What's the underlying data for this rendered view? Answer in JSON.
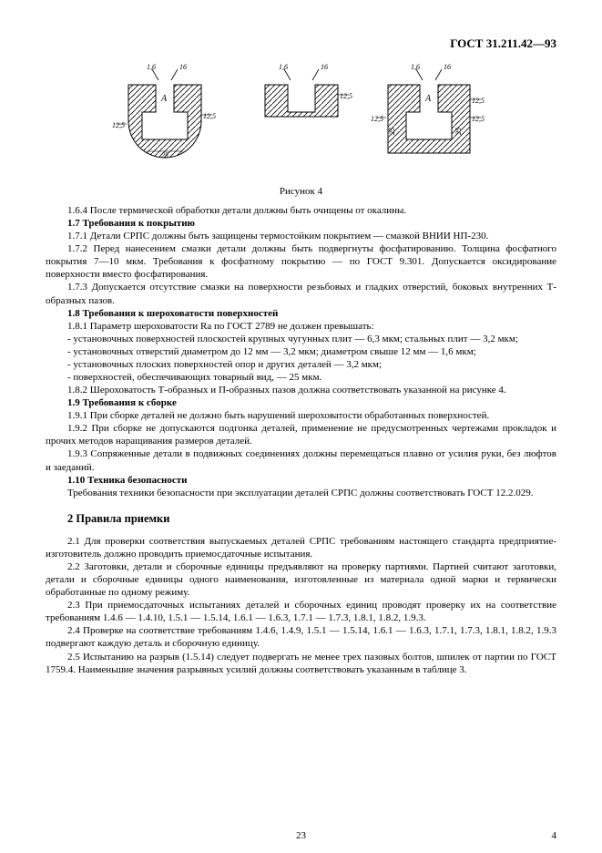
{
  "doc_header": "ГОСТ 31.211.42—93",
  "figure": {
    "caption": "Рисунок 4",
    "stroke": "#000000",
    "hatch": "#000000",
    "dims": {
      "r16": "1,6",
      "v16": "16",
      "v25": "25",
      "s125": "12,5",
      "letterA": "А"
    }
  },
  "paras": [
    {
      "b": false,
      "t": "1.6.4 После термической обработки детали должны быть очищены от окалины."
    },
    {
      "b": true,
      "t": "1.7 Требования к покрытию"
    },
    {
      "b": false,
      "t": "1.7.1 Детали СРПС должны быть защищены термостойким покрытием — смазкой ВНИИ НП-230."
    },
    {
      "b": false,
      "t": "1.7.2 Перед нанесением смазки детали должны быть подвергнуты фосфатированию. Толщина фосфатного покрытия 7—10 мкм. Требования к фосфатному покрытию — по ГОСТ 9.301. Допускается оксидирование поверхности вместо фосфатирования."
    },
    {
      "b": false,
      "t": "1.7.3 Допускается отсутствие смазки на поверхности резьбовых и гладких отверстий, боковых внутренних Т-образных пазов."
    },
    {
      "b": true,
      "t": "1.8 Требования к шероховатости поверхностей"
    },
    {
      "b": false,
      "t": "1.8.1 Параметр шероховатости Ra по ГОСТ 2789 не должен превышать:"
    },
    {
      "b": false,
      "t": "- установочных поверхностей плоскостей крупных чугунных плит — 6,3 мкм; стальных плит — 3,2 мкм;"
    },
    {
      "b": false,
      "t": "- установочных отверстий диаметром до 12 мм — 3,2 мкм; диаметром свыше 12 мм — 1,6 мкм;"
    },
    {
      "b": false,
      "t": "- установочных плоских поверхностей опор и других деталей — 3,2 мкм;"
    },
    {
      "b": false,
      "t": "- поверхностей, обеспечивающих товарный вид, — 25 мкм."
    },
    {
      "b": false,
      "t": "1.8.2 Шероховатость Т-образных и П-образных пазов должна соответствовать указанной на рисунке 4."
    },
    {
      "b": true,
      "t": "1.9 Требования к сборке"
    },
    {
      "b": false,
      "t": "1.9.1 При сборке деталей не должно быть нарушений шероховатости обработанных поверхностей."
    },
    {
      "b": false,
      "t": "1.9.2 При сборке не допускаются подгонка деталей, применение не предусмотренных чертежами прокладок и прочих методов наращивания размеров деталей."
    },
    {
      "b": false,
      "t": "1.9.3 Сопряженные детали в подвижных соединениях должны перемещаться плавно от усилия руки, без люфтов и заеданий."
    },
    {
      "b": true,
      "t": "1.10 Техника безопасности"
    },
    {
      "b": false,
      "t": "Требования техники безопасности при эксплуатации деталей СРПС должны соответствовать ГОСТ 12.2.029."
    }
  ],
  "section2_title": "2  Правила приемки",
  "paras2": [
    {
      "b": false,
      "t": "2.1 Для проверки соответствия выпускаемых деталей СРПС требованиям настоящего стандарта предприятие-изготовитель должно проводить приемосдаточные испытания."
    },
    {
      "b": false,
      "t": "2.2 Заготовки, детали и сборочные единицы предъявляют на проверку партиями. Партией считают заготовки, детали и сборочные единицы одного наименования, изготовленные из материала одной марки и термически обработанные по одному режиму."
    },
    {
      "b": false,
      "t": "2.3 При приемосдаточных испытаниях деталей и сборочных единиц проводят проверку их на соответствие требованиям 1.4.6 — 1.4.10, 1.5.1 — 1.5.14, 1.6.1 — 1.6.3, 1.7.1 — 1.7.3, 1.8.1, 1.8.2, 1.9.3."
    },
    {
      "b": false,
      "t": "2.4 Проверке на соответствие требованиям 1.4.6, 1.4.9, 1.5.1 — 1.5.14, 1.6.1 — 1.6.3, 1.7.1, 1.7.3, 1.8.1, 1.8.2, 1.9.3 подвергают каждую деталь и сборочную единицу."
    },
    {
      "b": false,
      "t": "2.5 Испытанию на разрыв (1.5.14) следует подвергать не менее трех пазовых болтов, шпилек от партии по ГОСТ 1759.4. Наименьшие значения разрывных усилий должны соответствовать указанным в таблице 3."
    }
  ],
  "page_inner": "23",
  "page_outer": "4"
}
